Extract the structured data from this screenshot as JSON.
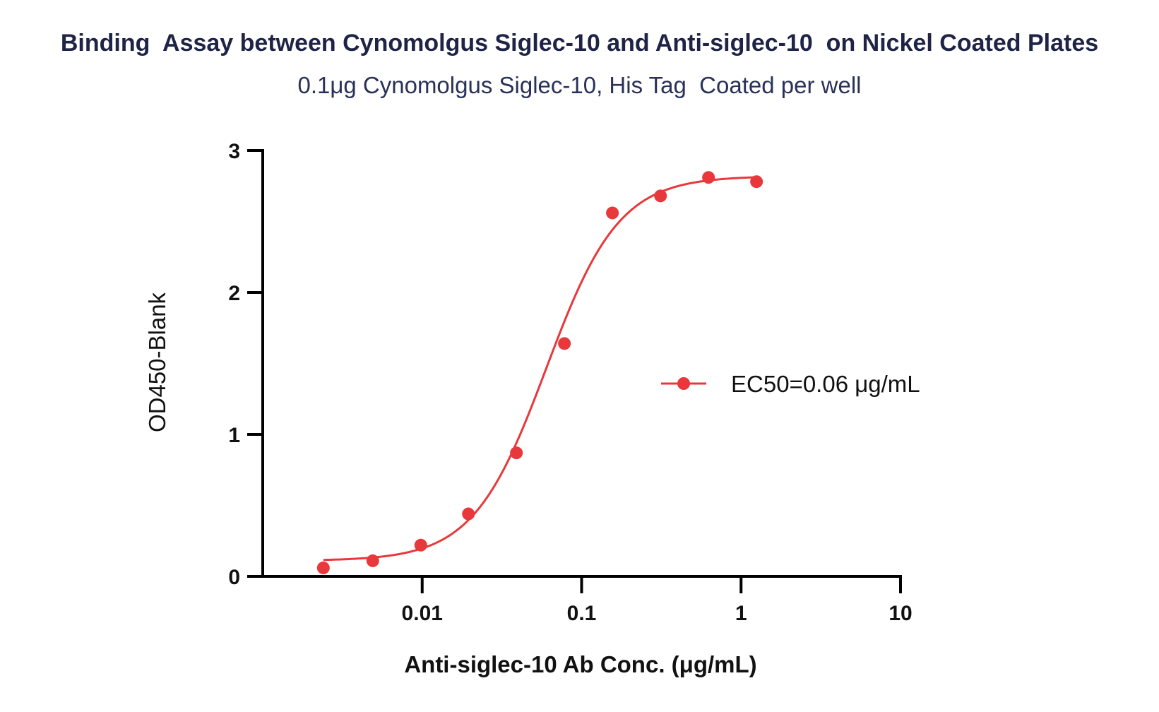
{
  "chart_data": {
    "type": "scatter",
    "title": "Binding  Assay between Cynomolgus Siglec-10 and Anti-siglec-10  on Nickel Coated Plates",
    "subtitle": "0.1μg Cynomolgus Siglec-10, His Tag  Coated per well",
    "xlabel": "Anti-siglec-10 Ab Conc. (μg/mL)",
    "ylabel": "OD450-Blank",
    "x_scale": "log",
    "xlim": [
      0.001,
      10
    ],
    "ylim": [
      0,
      3
    ],
    "x_ticks": [
      0.01,
      0.1,
      1,
      10
    ],
    "x_tick_labels": [
      "0.01",
      "0.1",
      "1",
      "10"
    ],
    "y_ticks": [
      0,
      1,
      2,
      3
    ],
    "y_tick_labels": [
      "0",
      "1",
      "2",
      "3"
    ],
    "grid": false,
    "legend_position": "right",
    "series": [
      {
        "name": "EC50=0.06 μg/mL",
        "color": "#e8383b",
        "x": [
          0.0024,
          0.0049,
          0.0098,
          0.0195,
          0.039,
          0.078,
          0.156,
          0.3125,
          0.625,
          1.25
        ],
        "y": [
          0.06,
          0.11,
          0.22,
          0.44,
          0.87,
          1.64,
          2.56,
          2.68,
          2.81,
          2.78
        ],
        "fit": {
          "model": "4PL",
          "bottom": 0.11,
          "top": 2.82,
          "ec50": 0.06,
          "hill": 1.9
        }
      }
    ]
  }
}
